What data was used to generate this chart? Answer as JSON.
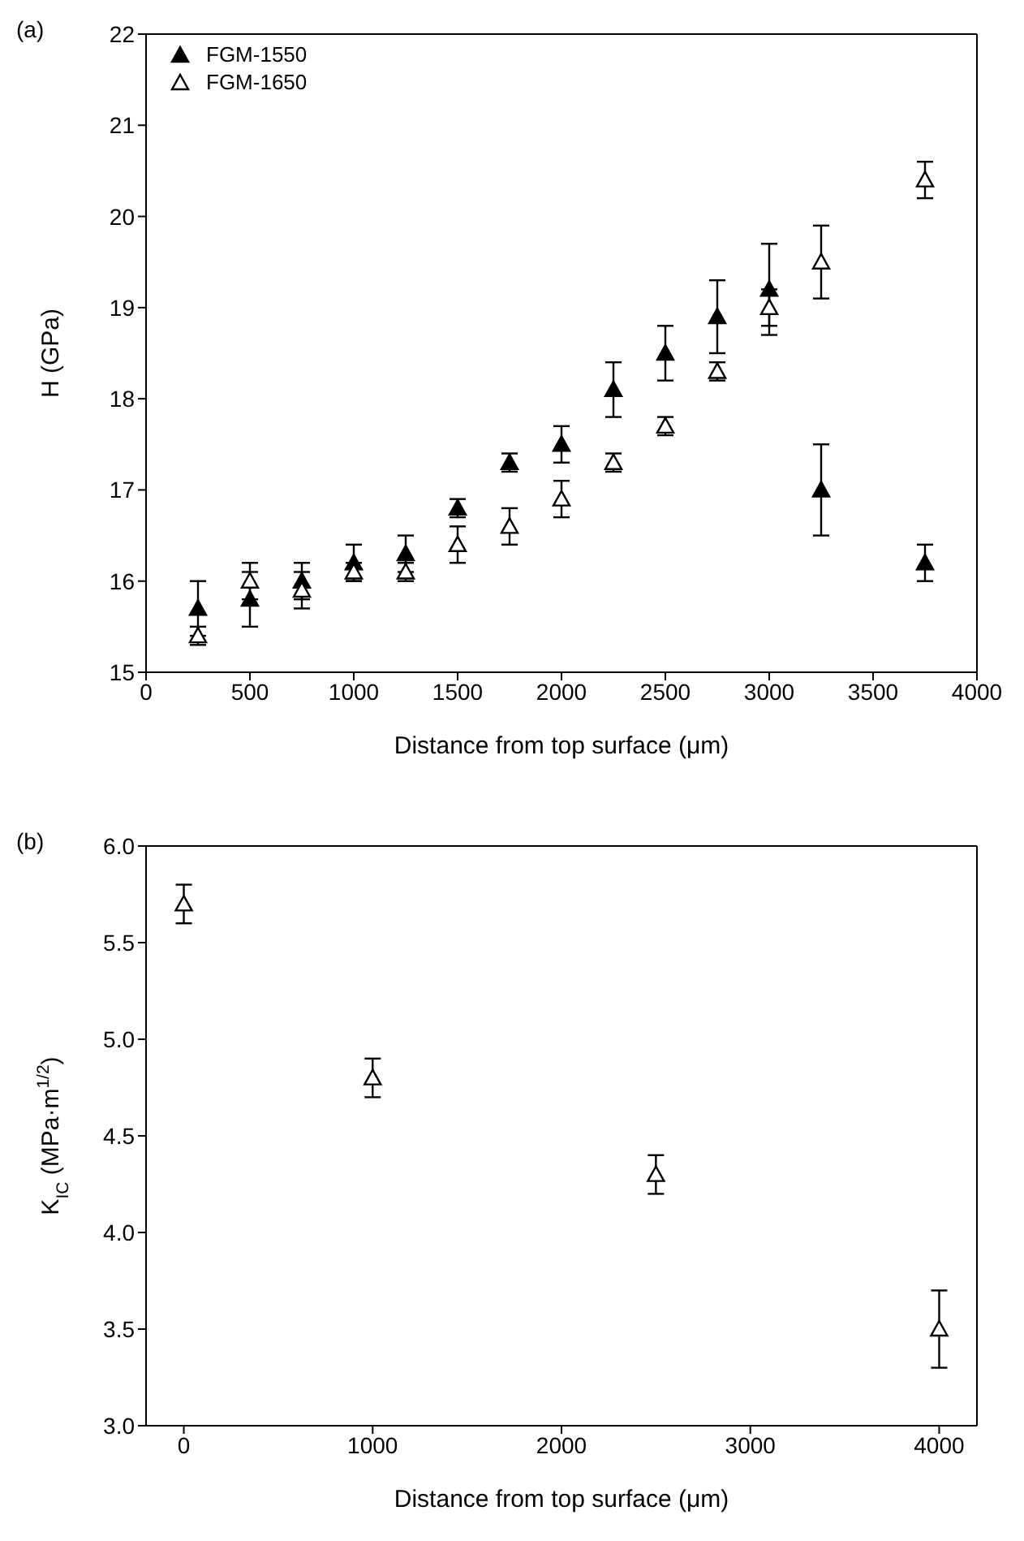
{
  "chart_data": [
    {
      "type": "scatter",
      "xlabel": "Distance from top surface (μm)",
      "ylabel": "H (GPa)",
      "annotations": [
        "(a)"
      ],
      "marker": "triangle",
      "legend": "top left",
      "xlim": [
        0,
        4000
      ],
      "xticks": [
        0,
        500,
        1000,
        1500,
        2000,
        2500,
        3000,
        3500,
        4000
      ],
      "ylim": [
        15,
        22
      ],
      "yticks": [
        15,
        16,
        17,
        18,
        19,
        20,
        21,
        22
      ],
      "series": [
        {
          "name": "FGM-1550",
          "color": "#000000",
          "x": [
            250,
            500,
            750,
            1000,
            1250,
            1500,
            1750,
            2000,
            2250,
            2500,
            2750,
            3000,
            3250,
            3750
          ],
          "values": [
            15.7,
            15.8,
            16.0,
            16.2,
            16.3,
            16.8,
            17.3,
            17.5,
            18.1,
            18.5,
            18.9,
            19.2,
            17.0,
            16.2
          ],
          "errors": [
            0.3,
            0.3,
            0.2,
            0.2,
            0.2,
            0.1,
            0.1,
            0.2,
            0.3,
            0.3,
            0.4,
            0.5,
            0.5,
            0.2
          ]
        },
        {
          "name": "FGM-1650",
          "color": "#000000",
          "x": [
            250,
            500,
            750,
            1000,
            1250,
            1500,
            1750,
            2000,
            2250,
            2500,
            2750,
            3000,
            3250,
            3750
          ],
          "values": [
            15.4,
            16.0,
            15.9,
            16.1,
            16.1,
            16.4,
            16.6,
            16.9,
            17.3,
            17.7,
            18.3,
            19.0,
            19.5,
            20.4
          ],
          "errors": [
            0.1,
            0.2,
            0.2,
            0.1,
            0.1,
            0.2,
            0.2,
            0.2,
            0.1,
            0.1,
            0.1,
            0.2,
            0.4,
            0.2
          ]
        }
      ]
    },
    {
      "type": "scatter",
      "xlabel": "Distance from top surface (μm)",
      "ylabel": "K$_{IC}$ (MPa·m$^{1/2}$)",
      "annotations": [
        "(b)"
      ],
      "marker": "triangle",
      "xlim": [
        -200,
        4200
      ],
      "xticks": [
        0,
        1000,
        2000,
        3000,
        4000
      ],
      "ylim": [
        3,
        6
      ],
      "yticks": [
        {
          "value": 3,
          "label": "3.0"
        },
        3.5,
        {
          "value": 4,
          "label": "4.0"
        },
        4.5,
        {
          "value": 5,
          "label": "5.0"
        },
        5.5,
        {
          "value": 6,
          "label": "6.0"
        }
      ],
      "series": [
        {
          "color": "#000000",
          "x": [
            0,
            1000,
            2500,
            4000
          ],
          "values": [
            5.7,
            4.8,
            4.3,
            3.5
          ],
          "errors": [
            0.1,
            0.1,
            0.1,
            0.2
          ]
        }
      ]
    }
  ]
}
